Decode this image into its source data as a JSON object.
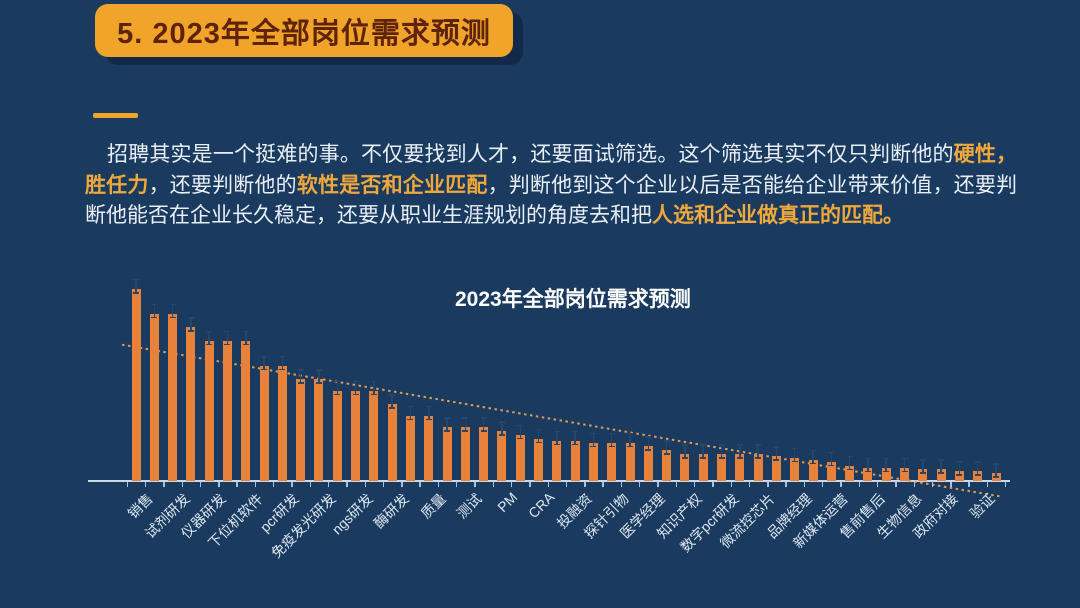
{
  "header": {
    "title": "5. 2023年全部岗位需求预测"
  },
  "paragraph": {
    "segments": [
      {
        "text": "招聘其实是一个挺难的事。不仅要找到人才，还要面试筛选。这个筛选其实不仅只判断他的",
        "highlight": false
      },
      {
        "text": "硬性，胜任力",
        "highlight": true
      },
      {
        "text": "，还要判断他的",
        "highlight": false
      },
      {
        "text": "软性是否和企业匹配",
        "highlight": true
      },
      {
        "text": "，判断他到这个企业以后是否能给企业带来价值，还要判断他能否在企业长久稳定，还要从职业生涯规划的角度去和把",
        "highlight": false
      },
      {
        "text": "人选和企业做真正的匹配。",
        "highlight": true
      }
    ]
  },
  "chart_data": {
    "type": "bar",
    "title": "2023年全部岗位需求预测",
    "categories": [
      "销售",
      "试剂研发",
      "仪器研发",
      "下位机软件",
      "pcr研发",
      "免疫发光研发",
      "ngs研发",
      "酶研发",
      "质量",
      "测试",
      "PM",
      "CRA",
      "投融资",
      "探针引物",
      "医学经理",
      "知识产权",
      "数字pcr研发",
      "微流控芯片",
      "品牌经理",
      "新媒体运营",
      "售前售后",
      "生物信息",
      "政府对接",
      "验证"
    ],
    "label_every_n_bars": 2,
    "values": [
      100,
      87,
      87,
      80,
      73,
      73,
      73,
      60,
      60,
      53,
      53,
      47,
      47,
      47,
      40,
      34,
      34,
      28,
      28,
      28,
      26,
      24,
      22,
      21,
      21,
      20,
      20,
      20,
      18,
      16,
      14,
      14,
      14,
      14,
      14,
      13,
      12,
      11,
      10,
      8,
      7,
      7,
      7,
      6,
      6,
      5,
      5,
      4
    ],
    "value_scale": "relative units, tallest bar = 100 (no y-axis labels shown)",
    "error_bar_size": 4.5,
    "trendline": {
      "style": "dotted",
      "start_value": 71,
      "end_value": -8
    },
    "xlabel": "",
    "ylabel": "",
    "legend": false,
    "grid": false,
    "colors": {
      "bar": "#E8813C",
      "trendline": "#DF9C55",
      "axis": "#C9D9E8",
      "error_bar": "#274769",
      "title_text": "#FFFFFF",
      "label_text": "#DCE6F0"
    }
  },
  "colors": {
    "background": "#1A3A5F",
    "banner_bg": "#F0A42A",
    "banner_text": "#5E2309",
    "banner_shadow": "#12294A",
    "accent": "#F0A42A",
    "body_text": "#E8EFF7",
    "highlight_text": "#F0A83C"
  }
}
